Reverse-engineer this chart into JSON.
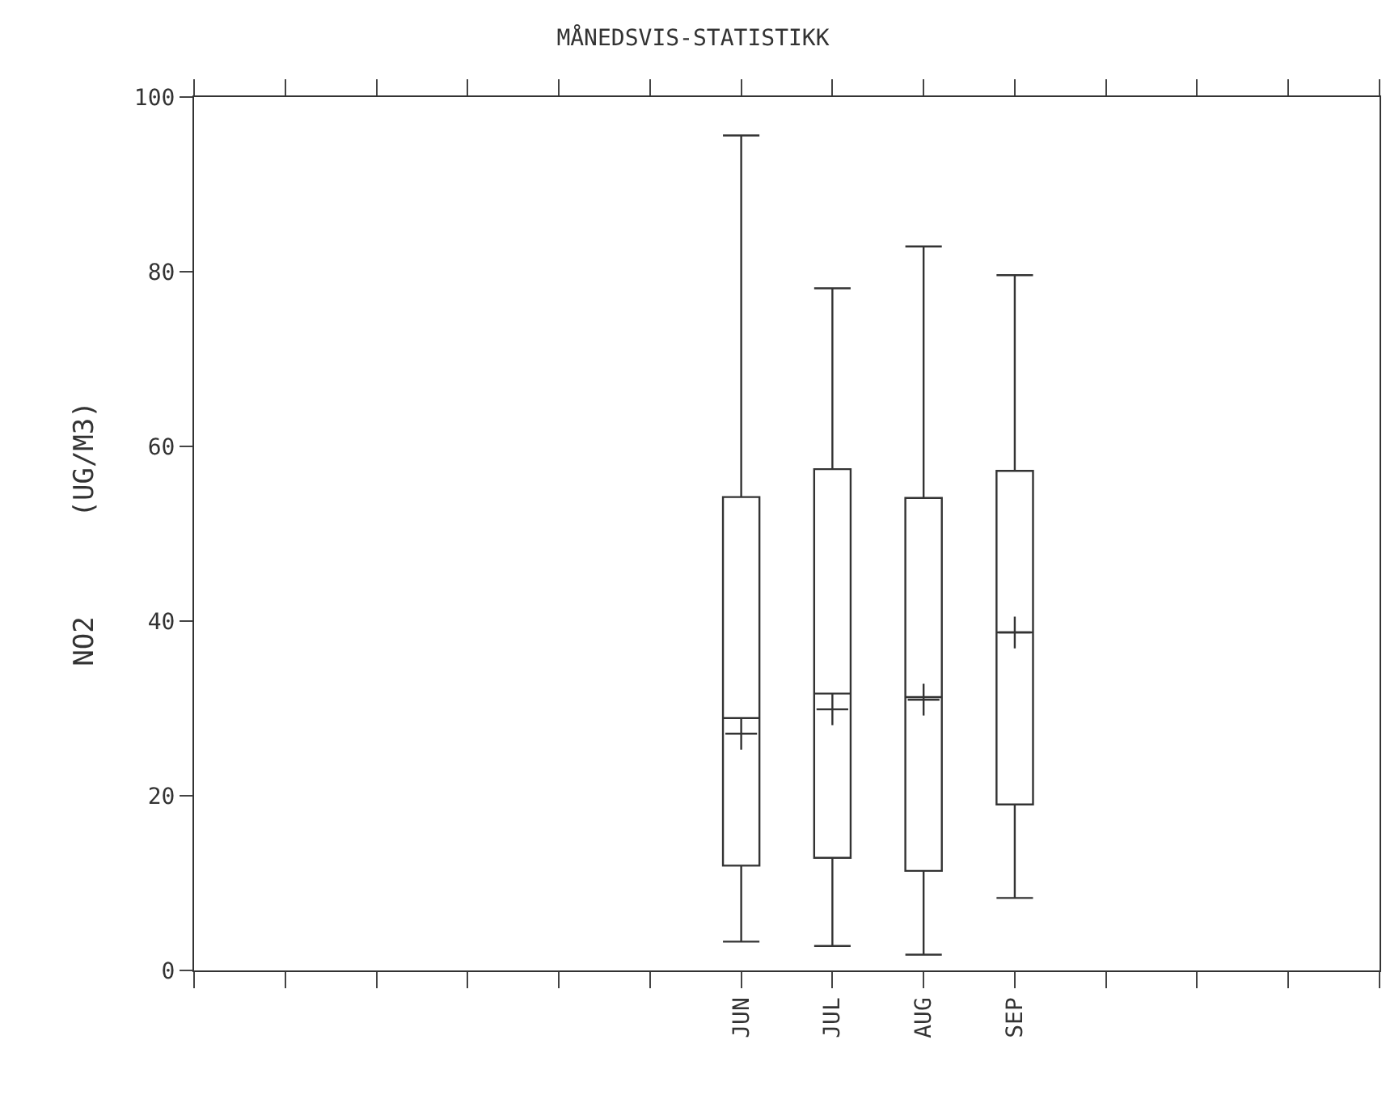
{
  "chart_data": {
    "type": "box",
    "title": "MÅNEDSVIS-STATISTIKK",
    "ylabel": "NO2      (UG/M3)",
    "categories": [
      null,
      null,
      null,
      null,
      null,
      "JUN",
      "JUL",
      "AUG",
      "SEP",
      null,
      null,
      null
    ],
    "boxes": [
      null,
      null,
      null,
      null,
      null,
      {
        "low": 3.3,
        "q1": 12.0,
        "median": 28.9,
        "q3": 54.2,
        "high": 95.6,
        "mean": 27.1
      },
      {
        "low": 2.8,
        "q1": 12.9,
        "median": 31.7,
        "q3": 57.4,
        "high": 78.1,
        "mean": 29.9
      },
      {
        "low": 1.8,
        "q1": 11.4,
        "median": 31.3,
        "q3": 54.1,
        "high": 82.9,
        "mean": 31.0
      },
      {
        "low": 8.3,
        "q1": 19.0,
        "median": 38.7,
        "q3": 57.2,
        "high": 79.6,
        "mean": 38.7
      },
      null,
      null,
      null
    ],
    "color": "#333333",
    "marker": "cross",
    "ylim": [
      0,
      100
    ],
    "yticks": [
      0,
      20,
      40,
      60,
      80,
      100
    ]
  }
}
